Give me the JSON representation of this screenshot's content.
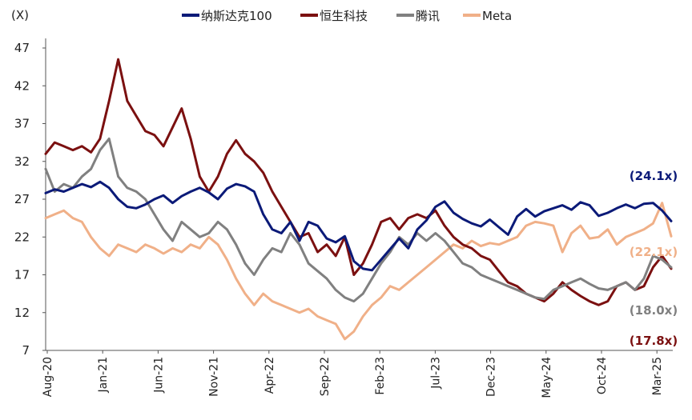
{
  "chart_data": {
    "type": "line",
    "title": "",
    "ylabel": "(X)",
    "xlabel": "",
    "ylim": [
      7,
      47
    ],
    "yticks": [
      7,
      12,
      17,
      22,
      27,
      32,
      37,
      42,
      47
    ],
    "xticks": [
      "Aug-20",
      "Jan-21",
      "Jun-21",
      "Nov-21",
      "Apr-22",
      "Sep-22",
      "Feb-23",
      "Jul-23",
      "Dec-23",
      "May-24",
      "Oct-24",
      "Mar-25"
    ],
    "grid": false,
    "legend_position": "top",
    "series": [
      {
        "name": "纳斯达克100",
        "color": "#0b1a78",
        "end_label": "(24.1x)",
        "values": [
          27.8,
          28.3,
          28.0,
          28.5,
          29.0,
          28.6,
          29.3,
          28.5,
          27.0,
          26.0,
          25.8,
          26.3,
          27.0,
          27.5,
          26.5,
          27.4,
          28.0,
          28.5,
          27.9,
          27.0,
          28.4,
          29.0,
          28.7,
          28.0,
          25.0,
          23.0,
          22.5,
          24.0,
          21.5,
          24.0,
          23.5,
          21.8,
          21.3,
          22.1,
          18.8,
          17.8,
          17.6,
          19.0,
          20.4,
          21.8,
          20.5,
          23.0,
          24.2,
          26.0,
          26.7,
          25.2,
          24.4,
          23.8,
          23.4,
          24.3,
          23.3,
          22.3,
          24.7,
          25.7,
          24.7,
          25.4,
          25.8,
          26.2,
          25.6,
          26.6,
          26.2,
          24.8,
          25.2,
          25.8,
          26.3,
          25.8,
          26.4,
          26.5,
          25.5,
          24.1
        ]
      },
      {
        "name": "恒生科技",
        "color": "#7b1010",
        "end_label": "(17.8x)",
        "values": [
          33.0,
          34.5,
          34.0,
          33.5,
          34.0,
          33.2,
          35.0,
          40.0,
          45.5,
          40.0,
          38.0,
          36.0,
          35.5,
          34.0,
          36.5,
          39.0,
          35.0,
          30.0,
          28.0,
          30.0,
          33.0,
          34.8,
          33.0,
          32.0,
          30.5,
          28.0,
          26.0,
          24.0,
          22.0,
          22.5,
          20.0,
          21.0,
          19.5,
          22.0,
          17.0,
          18.5,
          21.0,
          24.0,
          24.5,
          23.0,
          24.5,
          25.0,
          24.5,
          25.5,
          23.5,
          22.0,
          21.0,
          20.5,
          19.5,
          19.0,
          17.5,
          16.0,
          15.5,
          14.5,
          14.0,
          13.5,
          14.5,
          16.0,
          15.0,
          14.2,
          13.5,
          13.0,
          13.5,
          15.5,
          16.0,
          15.0,
          15.5,
          18.0,
          19.5,
          17.8
        ]
      },
      {
        "name": "腾讯",
        "color": "#808080",
        "end_label": "(18.0x)",
        "values": [
          31.0,
          28.0,
          29.0,
          28.5,
          30.0,
          31.0,
          33.5,
          35.0,
          30.0,
          28.5,
          28.0,
          27.0,
          25.0,
          23.0,
          21.5,
          24.0,
          23.0,
          22.0,
          22.5,
          24.0,
          23.0,
          21.0,
          18.5,
          17.0,
          19.0,
          20.5,
          20.0,
          22.5,
          21.0,
          18.5,
          17.5,
          16.5,
          15.0,
          14.0,
          13.5,
          14.5,
          16.5,
          18.5,
          20.0,
          22.0,
          21.0,
          22.5,
          21.5,
          22.5,
          21.5,
          20.0,
          18.5,
          18.0,
          17.0,
          16.5,
          16.0,
          15.5,
          15.0,
          14.5,
          14.0,
          13.8,
          15.0,
          15.5,
          16.0,
          16.5,
          15.8,
          15.2,
          15.0,
          15.5,
          16.0,
          15.0,
          16.5,
          19.5,
          19.0,
          18.0
        ]
      },
      {
        "name": "Meta",
        "color": "#f0b088",
        "end_label": "(22.1x)",
        "values": [
          24.5,
          25.0,
          25.5,
          24.5,
          24.0,
          22.0,
          20.5,
          19.5,
          21.0,
          20.5,
          20.0,
          21.0,
          20.5,
          19.8,
          20.5,
          20.0,
          21.0,
          20.5,
          22.0,
          21.0,
          19.0,
          16.5,
          14.5,
          13.0,
          14.5,
          13.5,
          13.0,
          12.5,
          12.0,
          12.5,
          11.5,
          11.0,
          10.5,
          8.5,
          9.5,
          11.5,
          13.0,
          14.0,
          15.5,
          15.0,
          16.0,
          17.0,
          18.0,
          19.0,
          20.0,
          21.0,
          20.5,
          21.5,
          20.8,
          21.2,
          21.0,
          21.5,
          22.0,
          23.5,
          24.0,
          23.8,
          23.5,
          20.0,
          22.5,
          23.5,
          21.8,
          22.0,
          23.0,
          21.0,
          22.0,
          22.5,
          23.0,
          23.8,
          26.5,
          22.1
        ]
      }
    ]
  }
}
